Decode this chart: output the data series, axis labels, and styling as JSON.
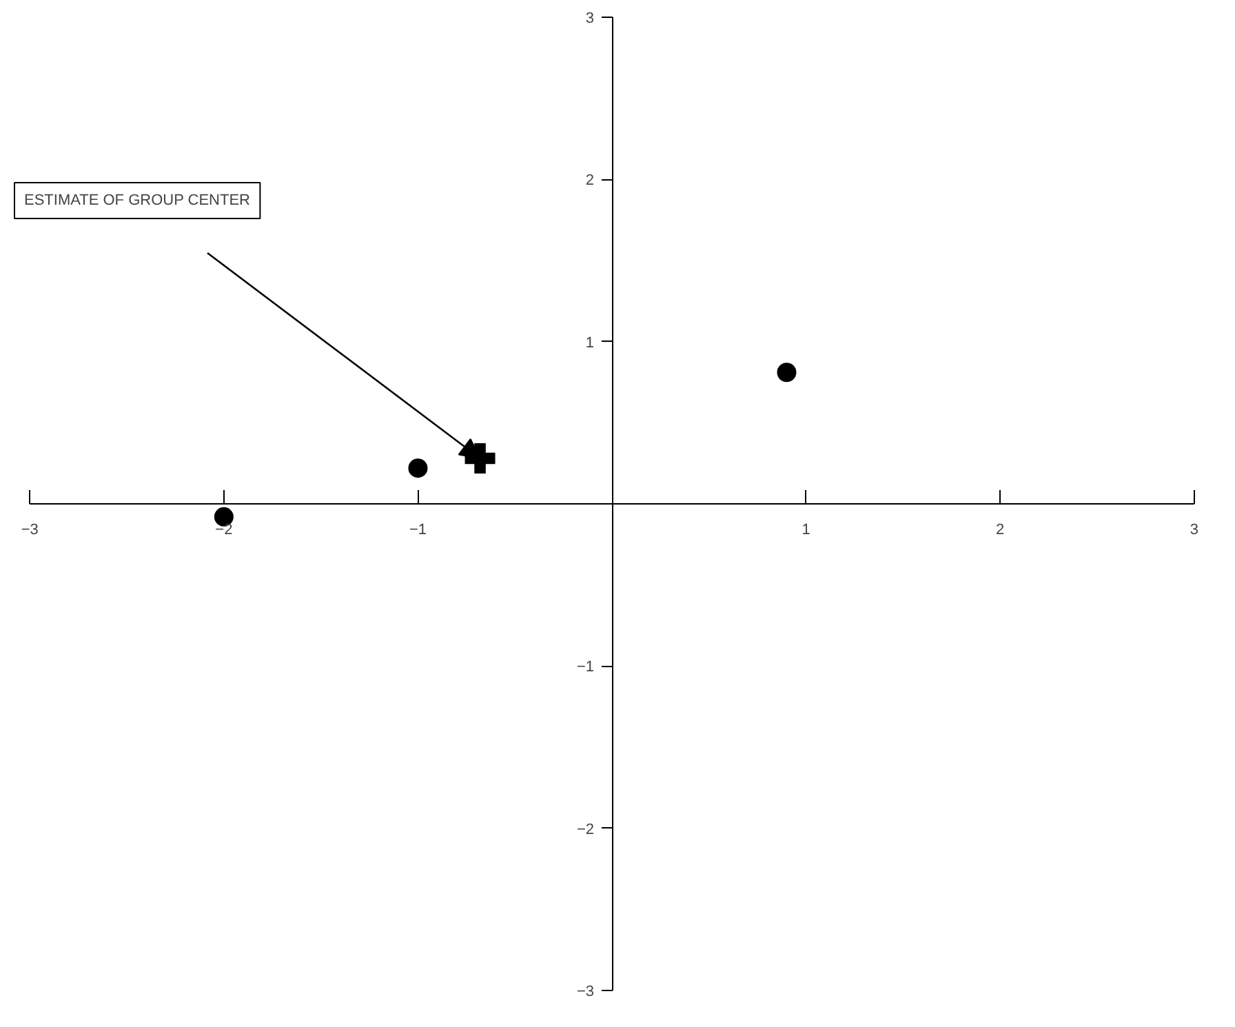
{
  "chart_data": {
    "type": "scatter",
    "xlim": [
      -3.15,
      3.1
    ],
    "ylim": [
      -3.1,
      3.1
    ],
    "xticks": [
      -3,
      -2,
      -1,
      1,
      2,
      3
    ],
    "yticks": [
      -3,
      -2,
      -1,
      1,
      2,
      3
    ],
    "grid": false,
    "series": [
      {
        "x": [
          -2,
          -1,
          0.9
        ],
        "values": [
          -0.08,
          0.22,
          0.81
        ],
        "color": "#000000",
        "marker": "circle"
      },
      {
        "x": [
          -0.68
        ],
        "values": [
          0.28
        ],
        "color": "#000000",
        "marker": "cross"
      }
    ],
    "annotations": [
      "ESTIMATE OF GROUP CENTER"
    ]
  }
}
